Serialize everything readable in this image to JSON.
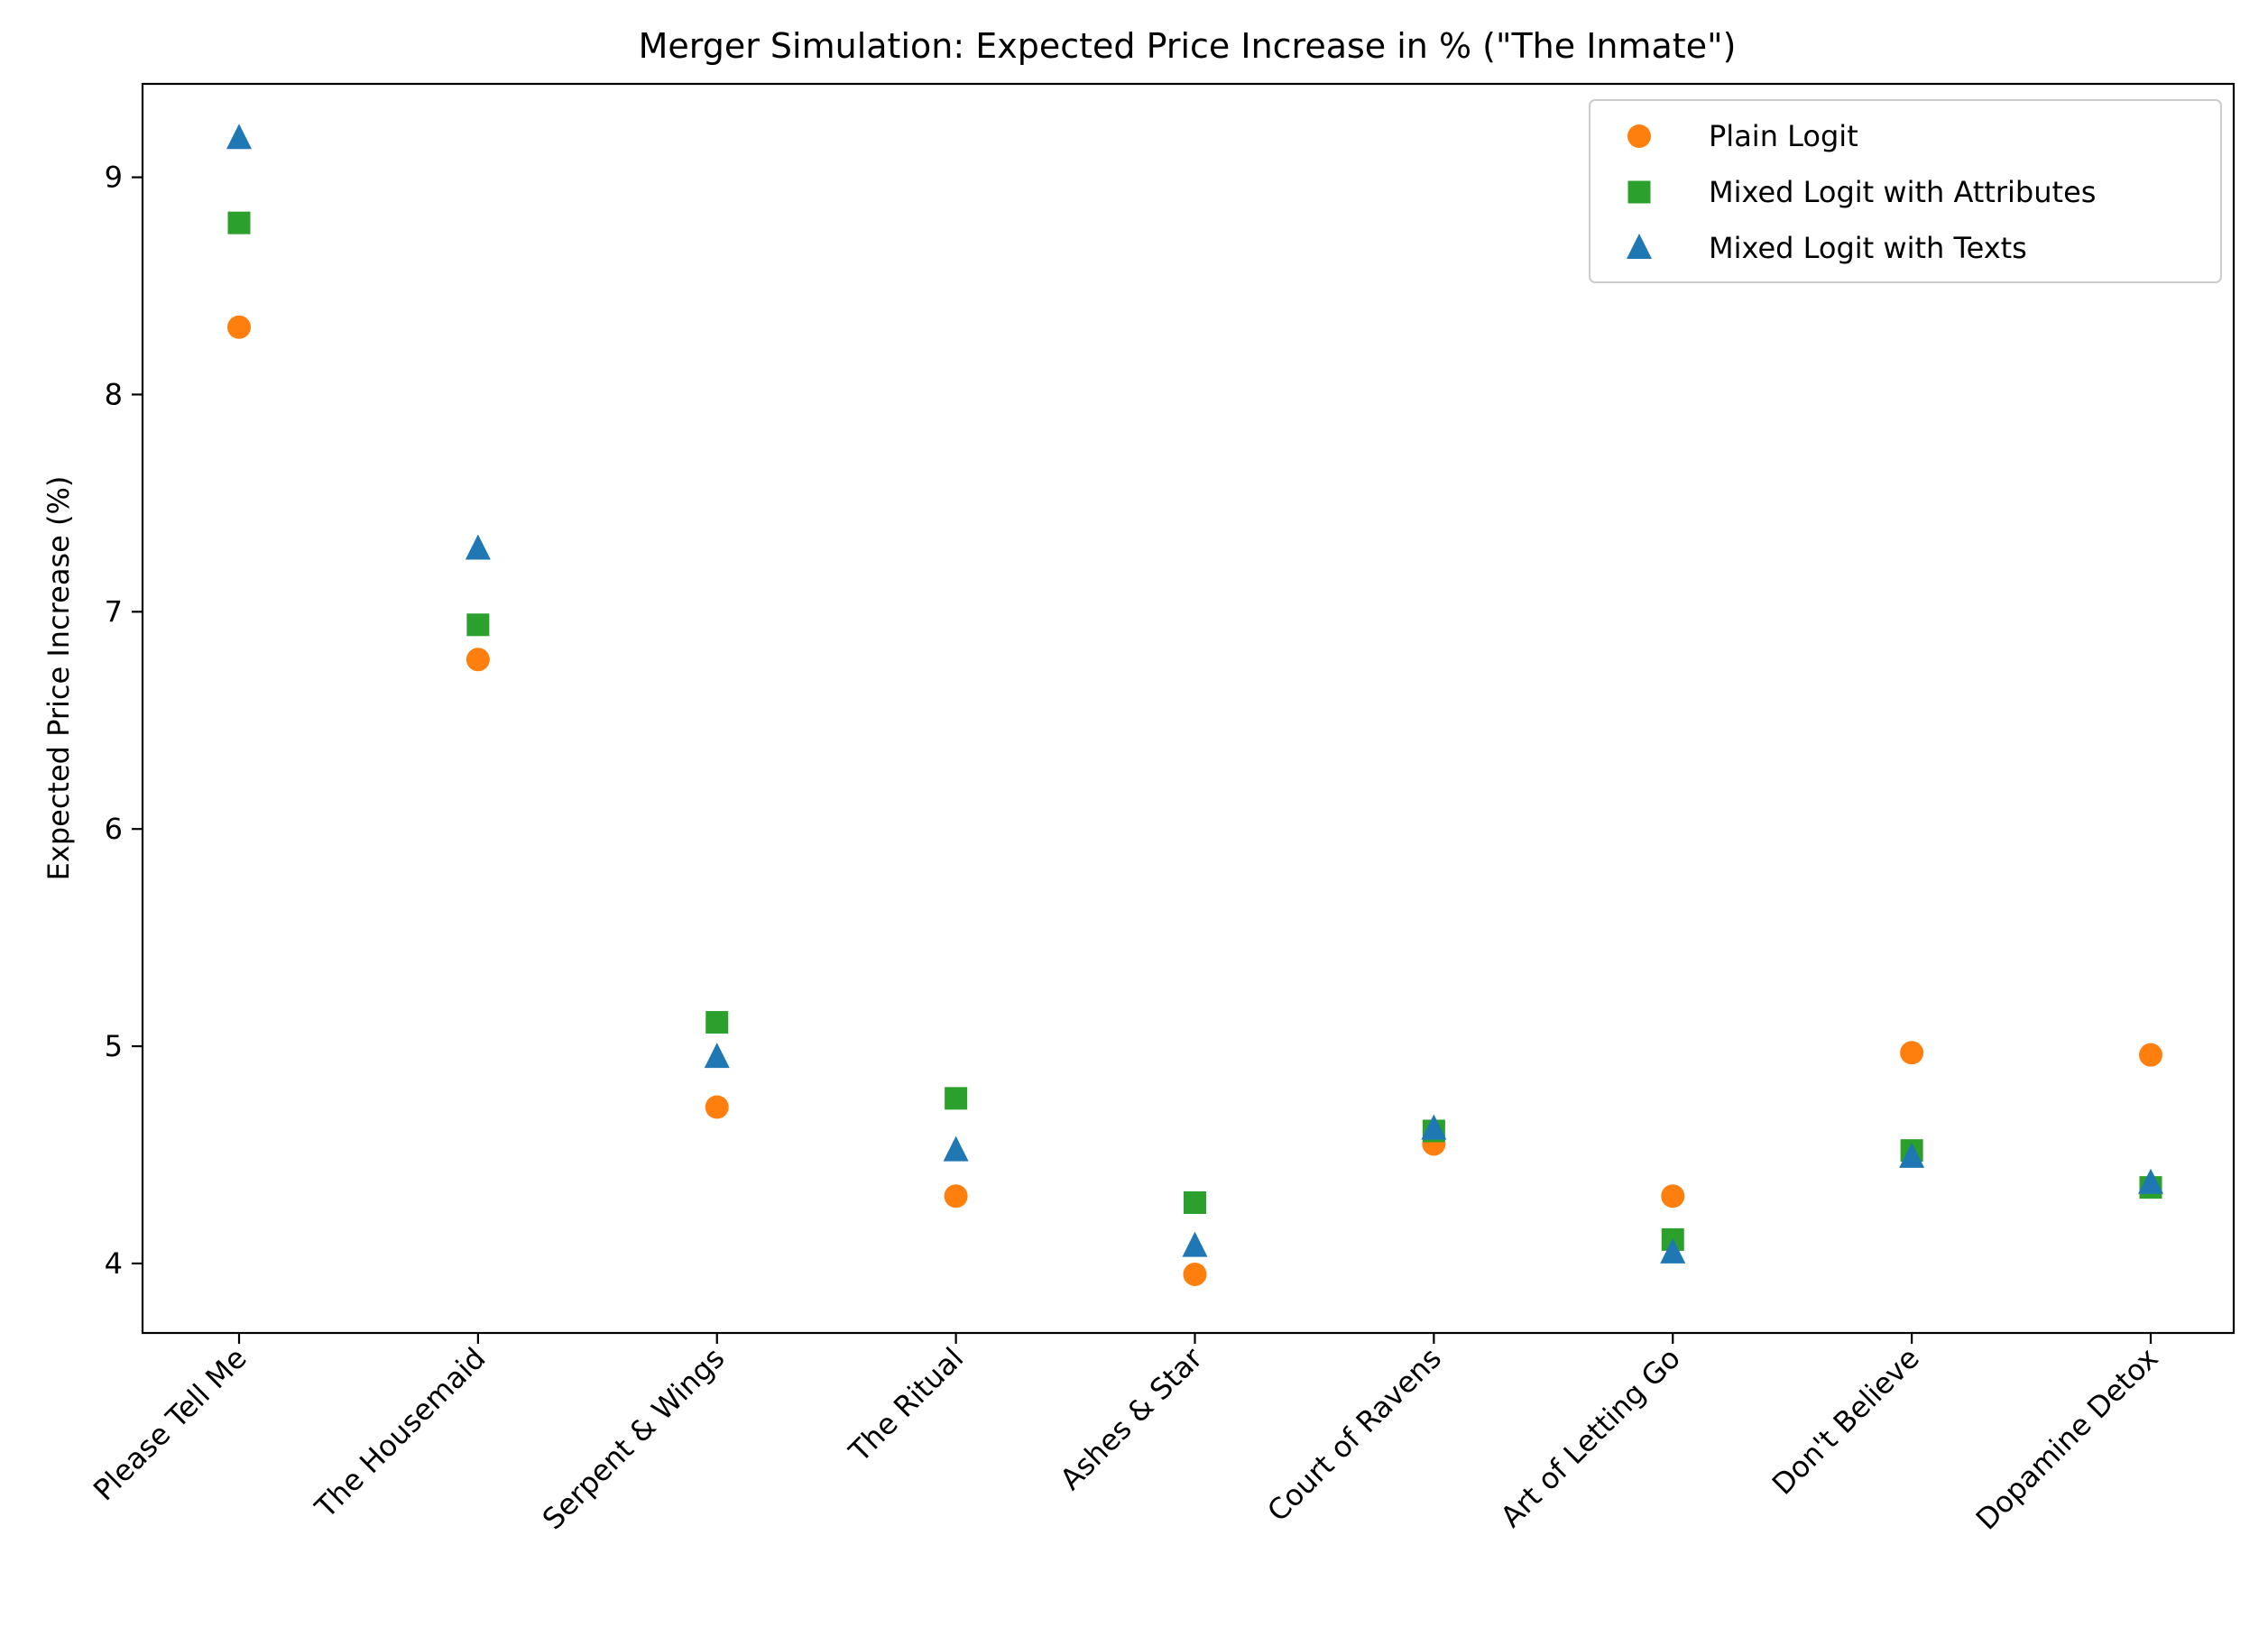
{
  "chart_data": {
    "type": "scatter",
    "title": "Merger Simulation: Expected Price Increase in % (\"The Inmate\")",
    "xlabel": "",
    "ylabel": "Expected Price Increase (%)",
    "categories": [
      "Please Tell Me",
      "The Housemaid",
      "Serpent & Wings",
      "The Ritual",
      "Ashes & Star",
      "Court of Ravens",
      "Art of Letting Go",
      "Don't Believe",
      "Dopamine Detox"
    ],
    "ylim": [
      3.68,
      9.43
    ],
    "yticks": [
      "4",
      "5",
      "6",
      "7",
      "8",
      "9"
    ],
    "legend_position": "top-right",
    "grid": false,
    "series": [
      {
        "name": "Plain Logit",
        "marker": "circle",
        "color": "#ff7f0e",
        "values": [
          8.31,
          6.78,
          4.72,
          4.31,
          3.95,
          4.55,
          4.31,
          4.97,
          4.96
        ]
      },
      {
        "name": "Mixed Logit with Attributes",
        "marker": "square",
        "color": "#2ca02c",
        "values": [
          8.79,
          6.94,
          5.11,
          4.76,
          4.28,
          4.61,
          4.11,
          4.52,
          4.35
        ]
      },
      {
        "name": "Mixed Logit with Texts",
        "marker": "triangle",
        "color": "#1f77b4",
        "values": [
          9.18,
          7.29,
          4.95,
          4.52,
          4.08,
          4.62,
          4.05,
          4.49,
          4.37
        ]
      }
    ]
  }
}
